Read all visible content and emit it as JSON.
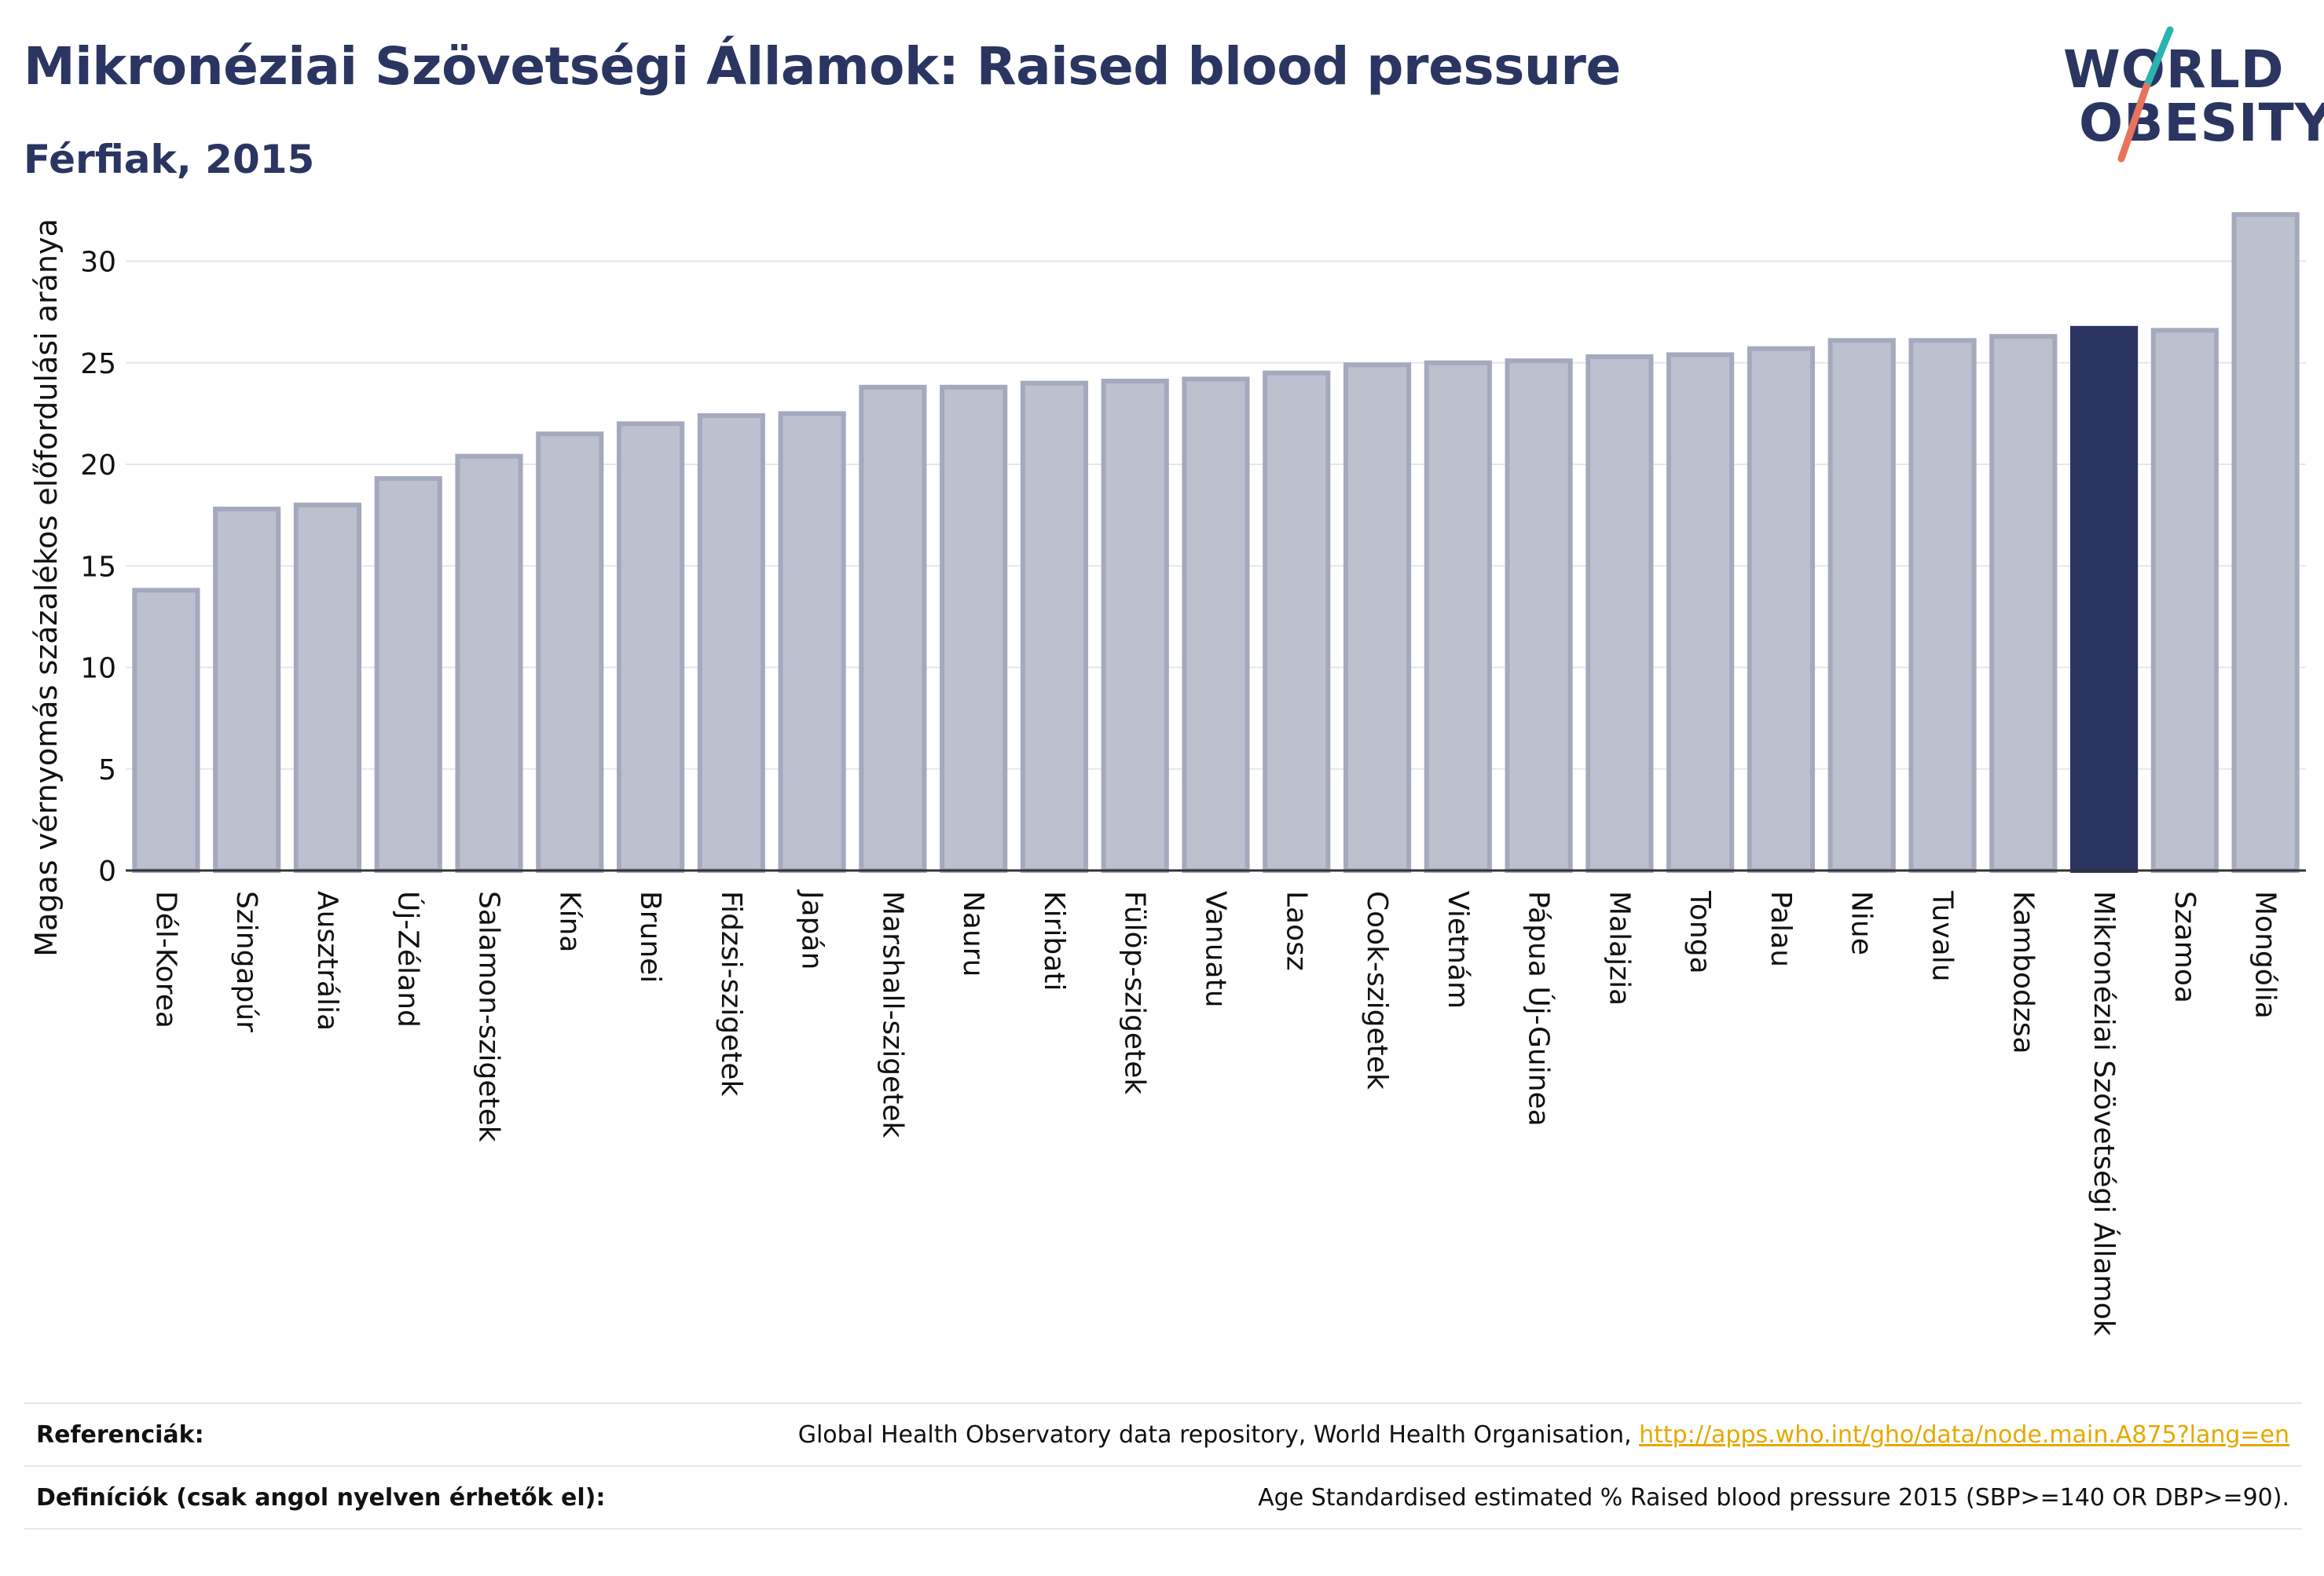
{
  "header": {
    "title": "Mikronéziai Szövetségi Államok: Raised blood pressure",
    "subtitle": "Férfiak, 2015"
  },
  "logo": {
    "line1": "WORLD",
    "line2": "OBESITY",
    "colors": {
      "text": "#2b3562",
      "slash_top": "#2ab3b0",
      "slash_bottom": "#e8735a"
    }
  },
  "chart_data": {
    "type": "bar",
    "title": "Mikronéziai Szövetségi Államok: Raised blood pressure",
    "subtitle": "Férfiak, 2015",
    "xlabel": "",
    "ylabel": "Magas vérnyomás százalékos előfordulási aránya",
    "ylim": [
      0,
      33
    ],
    "yticks": [
      0,
      5,
      10,
      15,
      20,
      25,
      30
    ],
    "grid": true,
    "categories": [
      "Dél-Korea",
      "Szingapúr",
      "Ausztrália",
      "Új-Zéland",
      "Salamon-szigetek",
      "Kína",
      "Brunei",
      "Fidzsi-szigetek",
      "Japán",
      "Marshall-szigetek",
      "Nauru",
      "Kiribati",
      "Fülöp-szigetek",
      "Vanuatu",
      "Laosz",
      "Cook-szigetek",
      "Vietnám",
      "Pápua Új-Guinea",
      "Malajzia",
      "Tonga",
      "Palau",
      "Niue",
      "Tuvalu",
      "Kambodzsa",
      "Mikronéziai Szövetségi Államok",
      "Szamoa",
      "Mongólia"
    ],
    "values": [
      13.8,
      17.8,
      18.0,
      19.3,
      20.4,
      21.5,
      22.0,
      22.4,
      22.5,
      23.8,
      23.8,
      24.0,
      24.1,
      24.2,
      24.5,
      24.9,
      25.0,
      25.1,
      25.3,
      25.4,
      25.7,
      26.1,
      26.1,
      26.3,
      26.7,
      26.6,
      32.3
    ],
    "highlight": "Mikronéziai Szövetségi Államok",
    "colors": {
      "bar": "#bcc0cf",
      "bar_edge": "#a4a9be",
      "highlight": "#2b3562",
      "grid": "#e5e7ee",
      "axis": "#333333"
    }
  },
  "footer": {
    "references_label": "Referenciák:",
    "references_text": "Global Health Observatory data repository, World Health Organisation, ",
    "references_link": "http://apps.who.int/gho/data/node.main.A875?lang=en",
    "definitions_label": "Definíciók (csak angol nyelven érhetők el):",
    "definitions_text": "Age Standardised estimated % Raised blood pressure 2015 (SBP>=140 OR DBP>=90)."
  }
}
